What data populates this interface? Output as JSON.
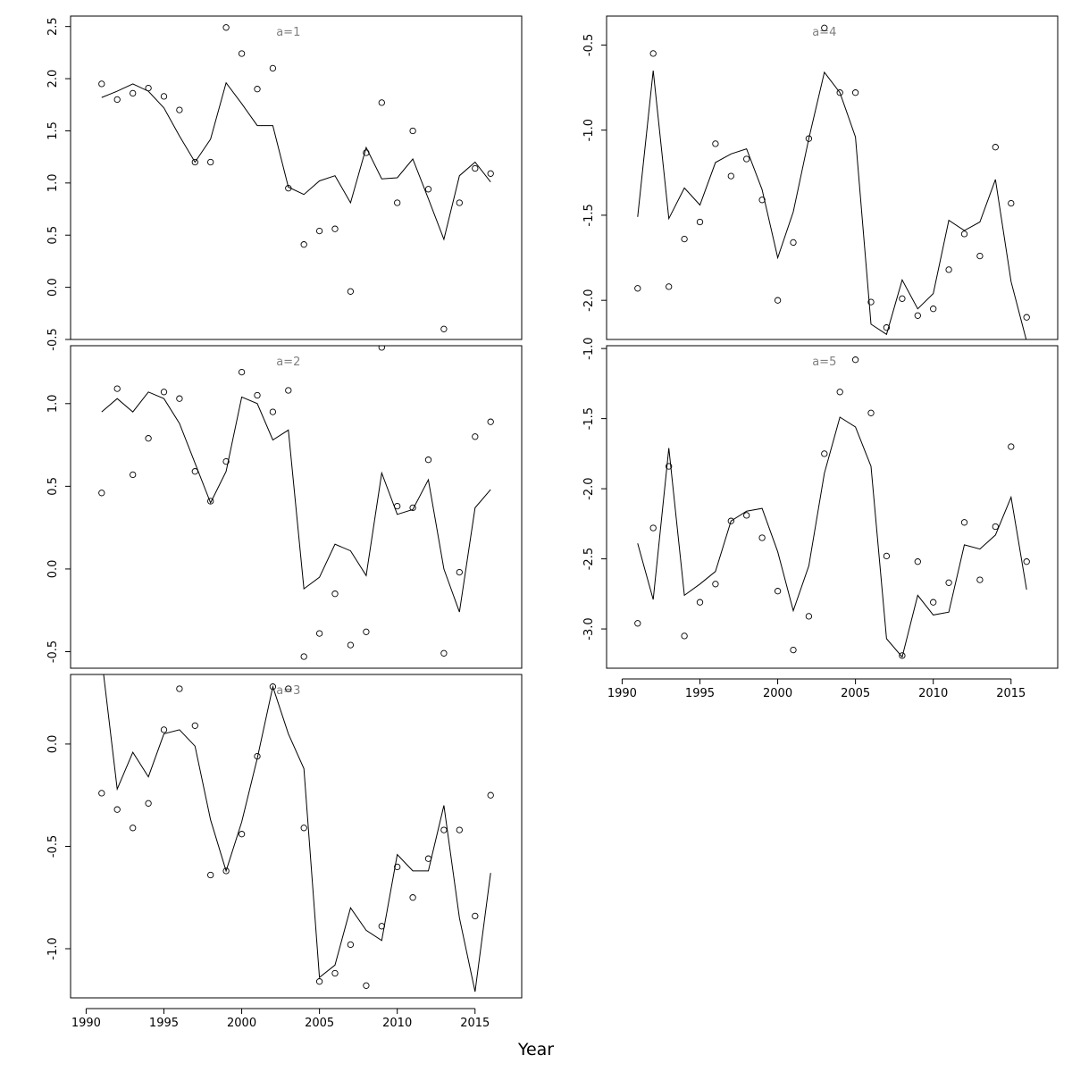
{
  "figure": {
    "xlabel": "Year"
  },
  "chart_data": [
    {
      "type": "line",
      "title": "a=1",
      "xlim": [
        1989,
        2018
      ],
      "ylim": [
        -0.5,
        2.6
      ],
      "yticks": [
        -0.5,
        0.0,
        0.5,
        1.0,
        1.5,
        2.0,
        2.5
      ],
      "ytick_labels": [
        "-0.5",
        "0.0",
        "0.5",
        "1.0",
        "1.5",
        "2.0",
        "2.5"
      ],
      "xticks": [],
      "xtick_labels": [],
      "x": [
        1991,
        1992,
        1993,
        1994,
        1995,
        1996,
        1997,
        1998,
        1999,
        2000,
        2001,
        2002,
        2003,
        2004,
        2005,
        2006,
        2007,
        2008,
        2009,
        2010,
        2011,
        2012,
        2013,
        2014,
        2015,
        2016
      ],
      "series": [
        {
          "kind": "line",
          "values": [
            1.82,
            1.88,
            1.95,
            1.88,
            1.72,
            1.45,
            1.2,
            1.42,
            1.96,
            1.76,
            1.55,
            1.55,
            0.96,
            0.89,
            1.02,
            1.07,
            0.81,
            1.34,
            1.04,
            1.05,
            1.23,
            0.85,
            0.46,
            1.07,
            1.2,
            1.01
          ]
        },
        {
          "kind": "points",
          "values": [
            1.95,
            1.8,
            1.86,
            1.91,
            1.83,
            1.7,
            1.2,
            1.2,
            2.49,
            2.24,
            1.9,
            2.1,
            0.95,
            0.41,
            0.54,
            0.56,
            -0.04,
            1.29,
            1.77,
            0.81,
            1.5,
            0.94,
            -0.4,
            0.81,
            1.14,
            1.09
          ]
        }
      ]
    },
    {
      "type": "line",
      "title": "a=2",
      "xlim": [
        1989,
        2018
      ],
      "ylim": [
        -0.6,
        1.35
      ],
      "yticks": [
        -0.5,
        0.0,
        0.5,
        1.0
      ],
      "ytick_labels": [
        "-0.5",
        "0.0",
        "0.5",
        "1.0"
      ],
      "xticks": [],
      "xtick_labels": [],
      "x": [
        1991,
        1992,
        1993,
        1994,
        1995,
        1996,
        1997,
        1998,
        1999,
        2000,
        2001,
        2002,
        2003,
        2004,
        2005,
        2006,
        2007,
        2008,
        2009,
        2010,
        2011,
        2012,
        2013,
        2014,
        2015,
        2016
      ],
      "series": [
        {
          "kind": "line",
          "values": [
            0.95,
            1.03,
            0.95,
            1.07,
            1.03,
            0.88,
            0.64,
            0.4,
            0.59,
            1.04,
            1.0,
            0.78,
            0.84,
            -0.12,
            -0.05,
            0.15,
            0.11,
            -0.04,
            0.58,
            0.33,
            0.36,
            0.54,
            0.0,
            -0.26,
            0.37,
            0.48
          ]
        },
        {
          "kind": "points",
          "values": [
            0.46,
            1.09,
            0.57,
            0.79,
            1.07,
            1.03,
            0.59,
            0.41,
            0.65,
            1.19,
            1.05,
            0.95,
            1.08,
            -0.53,
            -0.39,
            -0.15,
            -0.46,
            -0.38,
            1.34,
            0.38,
            0.37,
            0.66,
            -0.51,
            -0.02,
            0.8,
            0.89
          ]
        }
      ]
    },
    {
      "type": "line",
      "title": "a=3",
      "xlim": [
        1989,
        2018
      ],
      "ylim": [
        -1.24,
        0.34
      ],
      "yticks": [
        -1.0,
        -0.5,
        0.0
      ],
      "ytick_labels": [
        "-1.0",
        "-0.5",
        "0.0"
      ],
      "xticks": [
        1990,
        1995,
        2000,
        2005,
        2010,
        2015
      ],
      "xtick_labels": [
        "1990",
        "1995",
        "2000",
        "2005",
        "2010",
        "2015"
      ],
      "x": [
        1991,
        1992,
        1993,
        1994,
        1995,
        1996,
        1997,
        1998,
        1999,
        2000,
        2001,
        2002,
        2003,
        2004,
        2005,
        2006,
        2007,
        2008,
        2009,
        2010,
        2011,
        2012,
        2013,
        2014,
        2015,
        2016
      ],
      "series": [
        {
          "kind": "line",
          "values": [
            0.42,
            -0.22,
            -0.04,
            -0.16,
            0.05,
            0.07,
            -0.01,
            -0.37,
            -0.62,
            -0.38,
            -0.07,
            0.28,
            0.05,
            -0.12,
            -1.14,
            -1.08,
            -0.8,
            -0.91,
            -0.96,
            -0.54,
            -0.62,
            -0.62,
            -0.3,
            -0.85,
            -1.21,
            -0.63
          ]
        },
        {
          "kind": "points",
          "values": [
            -0.24,
            -0.32,
            -0.41,
            -0.29,
            0.07,
            0.27,
            0.09,
            -0.64,
            -0.62,
            -0.44,
            -0.06,
            0.28,
            0.27,
            -0.41,
            -1.16,
            -1.12,
            -0.98,
            -1.18,
            -0.89,
            -0.6,
            -0.75,
            -0.56,
            -0.42,
            -0.42,
            -0.84,
            -0.25
          ]
        }
      ]
    },
    {
      "type": "line",
      "title": "a=4",
      "xlim": [
        1989,
        2018
      ],
      "ylim": [
        -2.23,
        -0.33
      ],
      "yticks": [
        -2.0,
        -1.5,
        -1.0,
        -0.5
      ],
      "ytick_labels": [
        "-2.0",
        "-1.5",
        "-1.0",
        "-0.5"
      ],
      "xticks": [],
      "xtick_labels": [],
      "x": [
        1991,
        1992,
        1993,
        1994,
        1995,
        1996,
        1997,
        1998,
        1999,
        2000,
        2001,
        2002,
        2003,
        2004,
        2005,
        2006,
        2007,
        2008,
        2009,
        2010,
        2011,
        2012,
        2013,
        2014,
        2015,
        2016
      ],
      "series": [
        {
          "kind": "line",
          "values": [
            -1.51,
            -0.65,
            -1.52,
            -1.34,
            -1.44,
            -1.19,
            -1.14,
            -1.11,
            -1.35,
            -1.75,
            -1.48,
            -1.05,
            -0.66,
            -0.78,
            -1.04,
            -2.14,
            -2.2,
            -1.88,
            -2.05,
            -1.96,
            -1.53,
            -1.59,
            -1.54,
            -1.29,
            -1.89,
            -2.24
          ]
        },
        {
          "kind": "points",
          "values": [
            -1.93,
            -0.55,
            -1.92,
            -1.64,
            -1.54,
            -1.08,
            -1.27,
            -1.17,
            -1.41,
            -2.0,
            -1.66,
            -1.05,
            -0.4,
            -0.78,
            -0.78,
            -2.01,
            -2.16,
            -1.99,
            -2.09,
            -2.05,
            -1.82,
            -1.61,
            -1.74,
            -1.1,
            -1.43,
            -2.1
          ]
        }
      ]
    },
    {
      "type": "line",
      "title": "a=5",
      "xlim": [
        1989,
        2018
      ],
      "ylim": [
        -3.28,
        -0.98
      ],
      "yticks": [
        -3.0,
        -2.5,
        -2.0,
        -1.5,
        -1.0
      ],
      "ytick_labels": [
        "-3.0",
        "-2.5",
        "-2.0",
        "-1.5",
        "-1.0"
      ],
      "xticks": [
        1990,
        1995,
        2000,
        2005,
        2010,
        2015
      ],
      "xtick_labels": [
        "1990",
        "1995",
        "2000",
        "2005",
        "2010",
        "2015"
      ],
      "x": [
        1991,
        1992,
        1993,
        1994,
        1995,
        1996,
        1997,
        1998,
        1999,
        2000,
        2001,
        2002,
        2003,
        2004,
        2005,
        2006,
        2007,
        2008,
        2009,
        2010,
        2011,
        2012,
        2013,
        2014,
        2015,
        2016
      ],
      "series": [
        {
          "kind": "line",
          "values": [
            -2.39,
            -2.79,
            -1.71,
            -2.76,
            -2.68,
            -2.59,
            -2.23,
            -2.16,
            -2.14,
            -2.45,
            -2.87,
            -2.55,
            -1.89,
            -1.49,
            -1.56,
            -1.84,
            -3.07,
            -3.2,
            -2.76,
            -2.9,
            -2.88,
            -2.4,
            -2.43,
            -2.33,
            -2.06,
            -2.72
          ]
        },
        {
          "kind": "points",
          "values": [
            -2.96,
            -2.28,
            -1.84,
            -3.05,
            -2.81,
            -2.68,
            -2.23,
            -2.19,
            -2.35,
            -2.73,
            -3.15,
            -2.91,
            -1.75,
            -1.31,
            -1.08,
            -1.46,
            -2.48,
            -3.19,
            -2.52,
            -2.81,
            -2.67,
            -2.24,
            -2.65,
            -2.27,
            -1.7,
            -2.52
          ]
        }
      ]
    }
  ]
}
